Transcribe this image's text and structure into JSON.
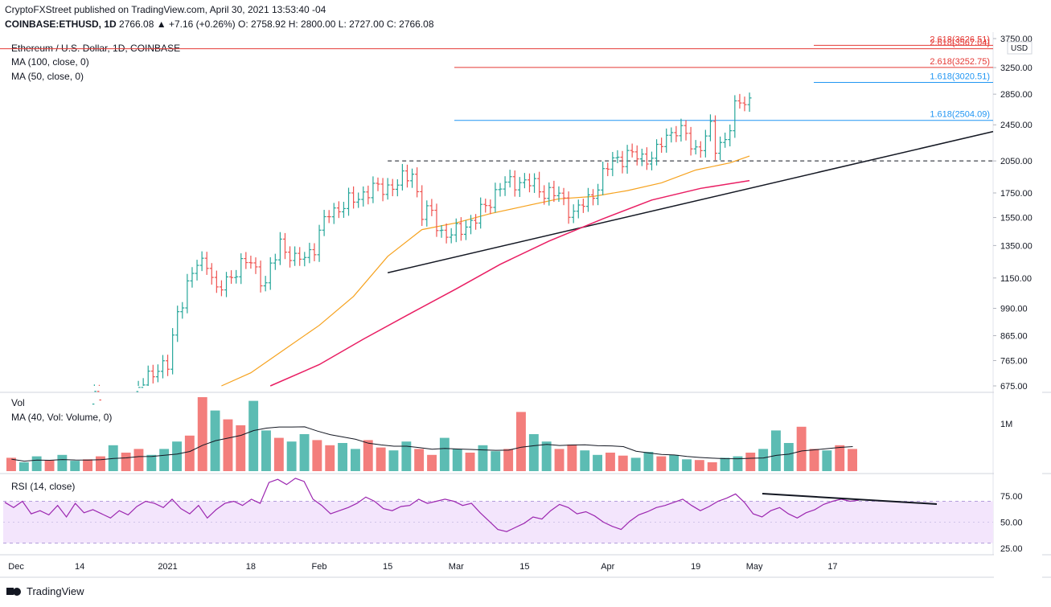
{
  "header": {
    "line1": "CryptoFXStreet published on TradingView.com, April 30, 2021 13:53:40 -04",
    "symbol": "COINBASE:ETHUSD, 1D",
    "ohlc": "2766.08 ▲ +7.16 (+0.26%) O: 2758.92 H: 2800.00 L: 2727.00 C: 2766.08"
  },
  "legend": {
    "title": "Ethereum / U.S. Dollar, 1D, COINBASE",
    "ma100": "MA (100, close, 0)",
    "ma50": "MA (50, close, 0)",
    "vol": "Vol",
    "volma": "MA (40, Vol: Volume, 0)",
    "rsi": "RSI (14, close)"
  },
  "brand": "TradingView",
  "colors": {
    "up": "#26a69a",
    "down": "#ef5350",
    "ma50": "#f6a21e",
    "ma100": "#e91e63",
    "fib_red": "#e53935",
    "fib_blue": "#2196f3",
    "rsi": "#9c27b0",
    "rsi_band": "#f3e5fc"
  },
  "chart_data": [
    {
      "type": "line",
      "panel": "price",
      "title": "Ethereum / U.S. Dollar, 1D, COINBASE",
      "currency": "USD",
      "scale": "log",
      "yticks": [
        675,
        765,
        865,
        990,
        1150,
        1350,
        1550,
        1750,
        2050,
        2450,
        2850,
        3250,
        3750
      ],
      "ytick_labels": [
        "675.00",
        "765.00",
        "865.00",
        "990.00",
        "1150.00",
        "1350.00",
        "1550.00",
        "1750.00",
        "2050.00",
        "2450.00",
        "2850.00",
        "3250.00",
        "3750.00"
      ],
      "xticks": [
        {
          "date": "2020-12-01",
          "label": "Dec"
        },
        {
          "date": "2020-12-14",
          "label": "14"
        },
        {
          "date": "2021-01-01",
          "label": "2021"
        },
        {
          "date": "2021-01-18",
          "label": "18"
        },
        {
          "date": "2021-02-01",
          "label": "Feb"
        },
        {
          "date": "2021-02-15",
          "label": "15"
        },
        {
          "date": "2021-03-01",
          "label": "Mar"
        },
        {
          "date": "2021-03-15",
          "label": "15"
        },
        {
          "date": "2021-04-01",
          "label": "Apr"
        },
        {
          "date": "2021-04-19",
          "label": "19"
        },
        {
          "date": "2021-05-01",
          "label": "May"
        },
        {
          "date": "2021-05-17",
          "label": "17"
        }
      ],
      "close_series": [
        [
          "2020-12-01",
          590
        ],
        [
          "2020-12-05",
          590
        ],
        [
          "2020-12-10",
          560
        ],
        [
          "2020-12-14",
          590
        ],
        [
          "2020-12-18",
          650
        ],
        [
          "2020-12-23",
          610
        ],
        [
          "2020-12-27",
          680
        ],
        [
          "2020-12-29",
          735
        ],
        [
          "2021-01-01",
          740
        ],
        [
          "2021-01-03",
          980
        ],
        [
          "2021-01-05",
          1100
        ],
        [
          "2021-01-07",
          1230
        ],
        [
          "2021-01-09",
          1260
        ],
        [
          "2021-01-11",
          1060
        ],
        [
          "2021-01-13",
          1140
        ],
        [
          "2021-01-15",
          1200
        ],
        [
          "2021-01-18",
          1250
        ],
        [
          "2021-01-21",
          1110
        ],
        [
          "2021-01-24",
          1380
        ],
        [
          "2021-01-27",
          1240
        ],
        [
          "2021-01-31",
          1340
        ],
        [
          "2021-02-03",
          1600
        ],
        [
          "2021-02-06",
          1640
        ],
        [
          "2021-02-10",
          1750
        ],
        [
          "2021-02-14",
          1800
        ],
        [
          "2021-02-17",
          1820
        ],
        [
          "2021-02-20",
          1950
        ],
        [
          "2021-02-22",
          1570
        ],
        [
          "2021-02-24",
          1590
        ],
        [
          "2021-02-26",
          1440
        ],
        [
          "2021-02-28",
          1410
        ],
        [
          "2021-03-02",
          1480
        ],
        [
          "2021-03-05",
          1530
        ],
        [
          "2021-03-07",
          1650
        ],
        [
          "2021-03-10",
          1800
        ],
        [
          "2021-03-13",
          1860
        ],
        [
          "2021-03-16",
          1830
        ],
        [
          "2021-03-19",
          1770
        ],
        [
          "2021-03-22",
          1720
        ],
        [
          "2021-03-25",
          1590
        ],
        [
          "2021-03-28",
          1680
        ],
        [
          "2021-03-31",
          1910
        ],
        [
          "2021-04-02",
          2050
        ],
        [
          "2021-04-05",
          2120
        ],
        [
          "2021-04-08",
          2070
        ],
        [
          "2021-04-11",
          2140
        ],
        [
          "2021-04-13",
          2300
        ],
        [
          "2021-04-15",
          2430
        ],
        [
          "2021-04-17",
          2310
        ],
        [
          "2021-04-18",
          2200
        ],
        [
          "2021-04-19",
          2160
        ],
        [
          "2021-04-21",
          2330
        ],
        [
          "2021-04-22",
          2390
        ],
        [
          "2021-04-23",
          2160
        ],
        [
          "2021-04-25",
          2300
        ],
        [
          "2021-04-27",
          2650
        ],
        [
          "2021-04-29",
          2750
        ],
        [
          "2021-04-30",
          2766.08
        ]
      ],
      "ma50_series": [
        [
          "2021-01-12",
          675
        ],
        [
          "2021-01-18",
          720
        ],
        [
          "2021-01-25",
          810
        ],
        [
          "2021-02-01",
          910
        ],
        [
          "2021-02-08",
          1050
        ],
        [
          "2021-02-15",
          1280
        ],
        [
          "2021-02-22",
          1460
        ],
        [
          "2021-03-01",
          1510
        ],
        [
          "2021-03-08",
          1580
        ],
        [
          "2021-03-15",
          1640
        ],
        [
          "2021-03-22",
          1700
        ],
        [
          "2021-03-29",
          1720
        ],
        [
          "2021-04-05",
          1770
        ],
        [
          "2021-04-12",
          1840
        ],
        [
          "2021-04-19",
          1960
        ],
        [
          "2021-04-26",
          2030
        ],
        [
          "2021-04-30",
          2100
        ]
      ],
      "ma100_series": [
        [
          "2021-01-22",
          675
        ],
        [
          "2021-02-01",
          750
        ],
        [
          "2021-02-10",
          850
        ],
        [
          "2021-02-20",
          970
        ],
        [
          "2021-03-01",
          1090
        ],
        [
          "2021-03-10",
          1230
        ],
        [
          "2021-03-20",
          1380
        ],
        [
          "2021-03-31",
          1540
        ],
        [
          "2021-04-10",
          1690
        ],
        [
          "2021-04-20",
          1790
        ],
        [
          "2021-04-30",
          1860
        ]
      ],
      "trendline": {
        "from": [
          "2021-02-15",
          1180
        ],
        "to": [
          "2021-05-24",
          2370
        ]
      },
      "resistance": {
        "from": [
          "2021-02-15",
          2050
        ],
        "to": [
          "2021-05-24",
          2050
        ]
      },
      "fib_levels": [
        {
          "label": "2.618(3626.51)",
          "value": 3626.51,
          "color": "red"
        },
        {
          "label": "2.618(3567.04)",
          "value": 3567.04,
          "color": "red"
        },
        {
          "label": "2.618(3252.75)",
          "value": 3252.75,
          "color": "red"
        },
        {
          "label": "1.618(3020.51)",
          "value": 3020.51,
          "color": "blue"
        },
        {
          "label": "1.618(2504.09)",
          "value": 2504.09,
          "color": "blue"
        }
      ]
    },
    {
      "type": "bar",
      "panel": "volume",
      "title": "Vol",
      "ytick_labels": [
        "1M"
      ],
      "values_relative": [
        0.18,
        0.12,
        0.2,
        0.15,
        0.22,
        0.14,
        0.16,
        0.2,
        0.35,
        0.25,
        0.3,
        0.22,
        0.3,
        0.4,
        0.48,
        1.0,
        0.82,
        0.7,
        0.62,
        0.95,
        0.55,
        0.45,
        0.4,
        0.5,
        0.42,
        0.35,
        0.38,
        0.3,
        0.42,
        0.32,
        0.28,
        0.4,
        0.3,
        0.22,
        0.45,
        0.3,
        0.25,
        0.35,
        0.27,
        0.3,
        0.8,
        0.5,
        0.4,
        0.3,
        0.36,
        0.28,
        0.22,
        0.25,
        0.21,
        0.18,
        0.26,
        0.2,
        0.22,
        0.16,
        0.15,
        0.12,
        0.18,
        0.2,
        0.25,
        0.3,
        0.55,
        0.38,
        0.6,
        0.3,
        0.28,
        0.35,
        0.3
      ]
    },
    {
      "type": "line",
      "panel": "rsi",
      "title": "RSI (14, close)",
      "yticks": [
        25,
        50,
        75
      ],
      "ytick_labels": [
        "25.00",
        "50.00",
        "75.00"
      ],
      "band": [
        30,
        70
      ],
      "values": [
        69,
        64,
        70,
        58,
        61,
        57,
        66,
        55,
        68,
        59,
        62,
        58,
        54,
        61,
        57,
        65,
        70,
        68,
        64,
        72,
        63,
        58,
        66,
        54,
        62,
        68,
        70,
        66,
        72,
        68,
        88,
        91,
        86,
        92,
        89,
        72,
        66,
        58,
        61,
        64,
        68,
        74,
        70,
        63,
        61,
        65,
        66,
        72,
        68,
        70,
        72,
        70,
        66,
        68,
        59,
        51,
        43,
        41,
        45,
        49,
        55,
        53,
        61,
        67,
        64,
        58,
        60,
        56,
        50,
        46,
        43,
        51,
        57,
        60,
        64,
        66,
        69,
        72,
        66,
        61,
        65,
        70,
        73,
        77,
        69,
        58,
        55,
        61,
        64,
        58,
        54,
        59,
        62,
        67,
        70,
        72,
        70,
        71
      ]
    }
  ]
}
